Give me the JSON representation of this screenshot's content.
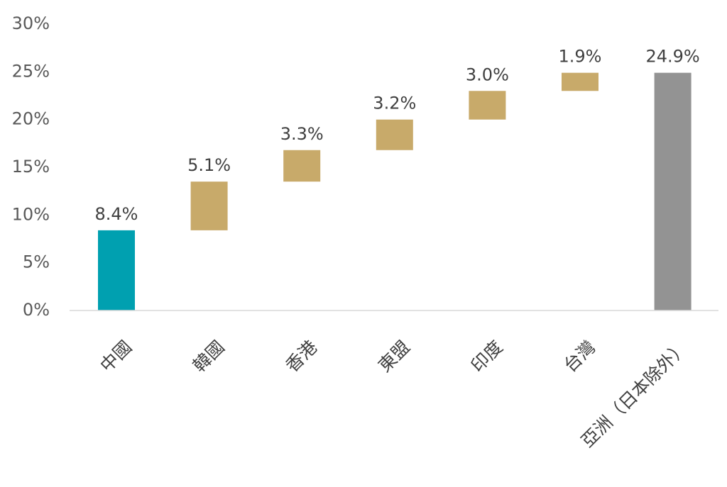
{
  "chart_data": {
    "type": "bar",
    "subtype": "waterfall",
    "title": "",
    "xlabel": "",
    "ylabel": "",
    "ylim": [
      0,
      30
    ],
    "yticks": [
      0,
      5,
      10,
      15,
      20,
      25,
      30
    ],
    "ytick_labels": [
      "0%",
      "5%",
      "10%",
      "15%",
      "20%",
      "25%",
      "30%"
    ],
    "grid": false,
    "legend": "none",
    "categories": [
      "中國",
      "韓國",
      "香港",
      "東盟",
      "印度",
      "台灣",
      "亞洲（日本除外）"
    ],
    "values": [
      8.4,
      5.1,
      3.3,
      3.2,
      3.0,
      1.9,
      24.9
    ],
    "bases": [
      0,
      8.4,
      13.5,
      16.8,
      20.0,
      23.0,
      0
    ],
    "kinds": [
      "start",
      "increment",
      "increment",
      "increment",
      "increment",
      "increment",
      "total"
    ],
    "value_labels": [
      "8.4%",
      "5.1%",
      "3.3%",
      "3.2%",
      "3.0%",
      "1.9%",
      "24.9%"
    ],
    "colors": {
      "start": "#00A0B0",
      "increment": "#C8AA6A",
      "total": "#939393",
      "axis": "#D9D9D9"
    }
  }
}
